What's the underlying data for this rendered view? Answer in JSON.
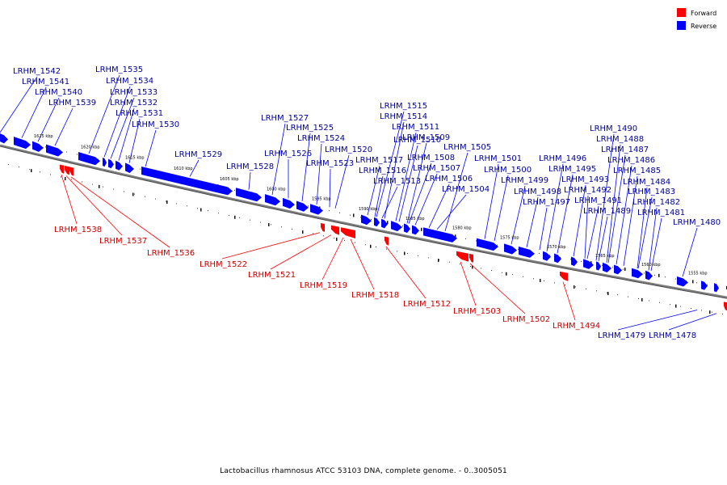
{
  "legend": [
    {
      "label": "Forward",
      "color": "#ff0000"
    },
    {
      "label": "Reverse",
      "color": "#0000ff"
    }
  ],
  "colors": {
    "forward": "#ff0000",
    "reverse": "#0000ff",
    "forward_label": "#cc0000",
    "reverse_label": "#000099",
    "backbone": "#7f7f7f"
  },
  "footer": "Lactobacillus rhamnosus ATCC 53103 DNA, complete genome. - 0..3005051",
  "kbp_ticks": [
    "1625 kbp",
    "1620 kbp",
    "1615 kbp",
    "1610 kbp",
    "1605 kbp",
    "1600 kbp",
    "1595 kbp",
    "1590 kbp",
    "1585 kbp",
    "1580 kbp",
    "1575 kbp",
    "1570 kbp",
    "1565 kbp",
    "1560 kbp",
    "1555 kbp"
  ],
  "reverse_genes": [
    "LRHM_1542",
    "LRHM_1541",
    "LRHM_1540",
    "LRHM_1539",
    "LRHM_1535",
    "LRHM_1534",
    "LRHM_1533",
    "LRHM_1532",
    "LRHM_1531",
    "LRHM_1530",
    "LRHM_1529",
    "LRHM_1528",
    "LRHM_1527",
    "LRHM_1526",
    "LRHM_1525",
    "LRHM_1524",
    "LRHM_1523",
    "LRHM_1520",
    "LRHM_1517",
    "LRHM_1516",
    "LRHM_1515",
    "LRHM_1514",
    "LRHM_1513",
    "LRHM_1511",
    "LRHM_1510",
    "LRHM_1509",
    "LRHM_1508",
    "LRHM_1507",
    "LRHM_1506",
    "LRHM_1505",
    "LRHM_1504",
    "LRHM_1501",
    "LRHM_1500",
    "LRHM_1499",
    "LRHM_1498",
    "LRHM_1497",
    "LRHM_1496",
    "LRHM_1495",
    "LRHM_1493",
    "LRHM_1492",
    "LRHM_1491",
    "LRHM_1490",
    "LRHM_1489",
    "LRHM_1488",
    "LRHM_1487",
    "LRHM_1486",
    "LRHM_1485",
    "LRHM_1484",
    "LRHM_1483",
    "LRHM_1482",
    "LRHM_1481",
    "LRHM_1480",
    "LRHM_1479",
    "LRHM_1478"
  ],
  "forward_genes": [
    "LRHM_1538",
    "LRHM_1537",
    "LRHM_1536",
    "LRHM_1522",
    "LRHM_1521",
    "LRHM_1519",
    "LRHM_1518",
    "LRHM_1512",
    "LRHM_1503",
    "LRHM_1502",
    "LRHM_1494"
  ]
}
